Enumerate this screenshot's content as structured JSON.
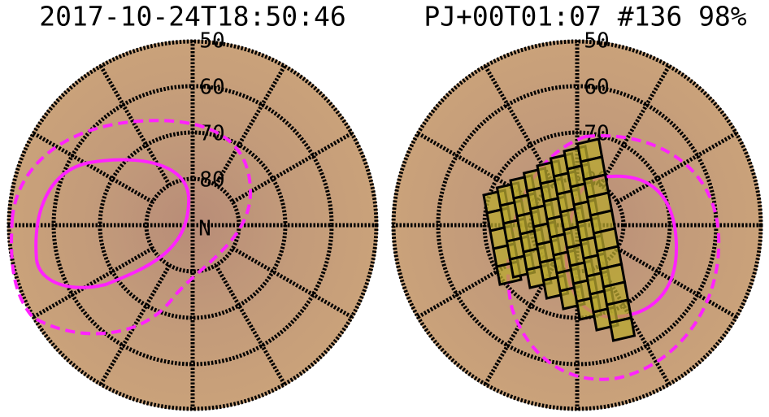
{
  "panels": [
    {
      "title": "2017-10-24T18:50:46",
      "latitude_labels": [
        50,
        60,
        70,
        80
      ],
      "pole_label": "N"
    },
    {
      "title": "PJ+00T01:07 #136 98%",
      "latitude_labels": [
        50,
        60,
        70,
        80
      ]
    }
  ]
}
